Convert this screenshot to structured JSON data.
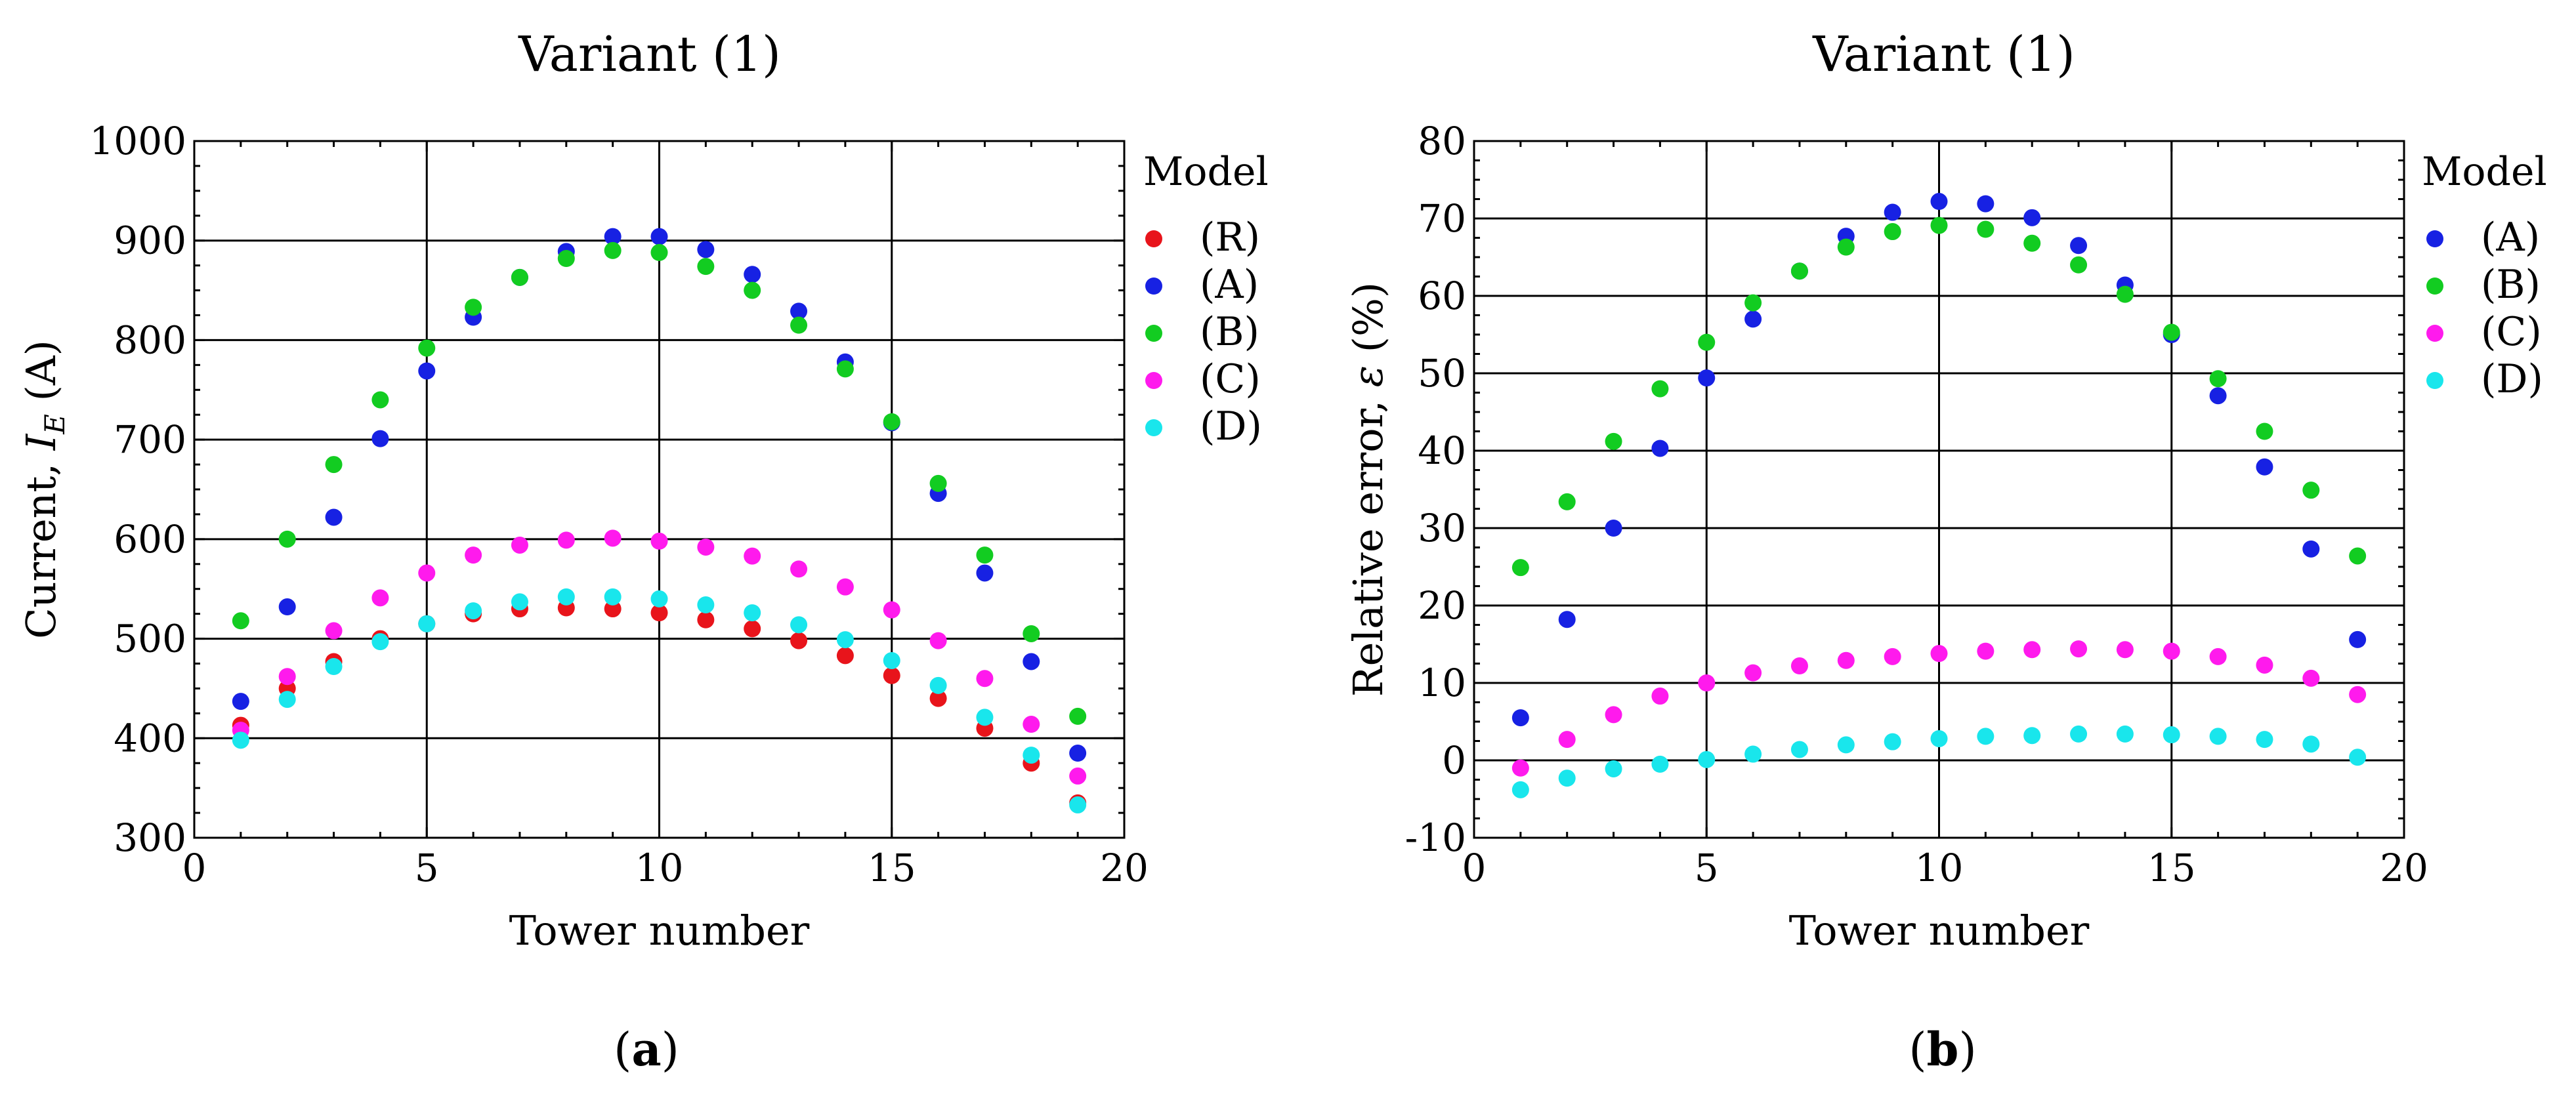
{
  "chart_data": [
    {
      "id": "a",
      "type": "scatter",
      "title": "Variant (1)",
      "xlabel": "Tower number",
      "ylabel": {
        "prefix": "Current, ",
        "var": "I",
        "sub": "E",
        "unit": " (A)"
      },
      "panel_prefix": "(",
      "panel_label": "a",
      "panel_suffix": ")",
      "xlim": [
        0,
        20
      ],
      "ylim": [
        300,
        1000
      ],
      "xticks": [
        0,
        5,
        10,
        15,
        20
      ],
      "yticks": [
        300,
        400,
        500,
        600,
        700,
        800,
        900,
        1000
      ],
      "grid": true,
      "legend_title": "Model",
      "legend_position": "right",
      "x": [
        1,
        2,
        3,
        4,
        5,
        6,
        7,
        8,
        9,
        10,
        11,
        12,
        13,
        14,
        15,
        16,
        17,
        18,
        19
      ],
      "series": [
        {
          "name": "(R)",
          "color": "#e8141b",
          "values": [
            413,
            450,
            477,
            500,
            515,
            525,
            530,
            531,
            530,
            526,
            519,
            510,
            498,
            483,
            463,
            440,
            410,
            375,
            335
          ]
        },
        {
          "name": "(A)",
          "color": "#1721e3",
          "values": [
            437,
            532,
            622,
            701,
            769,
            823,
            863,
            889,
            904,
            904,
            891,
            866,
            829,
            778,
            717,
            646,
            566,
            477,
            385
          ]
        },
        {
          "name": "(B)",
          "color": "#12cc21",
          "values": [
            518,
            600,
            675,
            740,
            792,
            833,
            863,
            882,
            890,
            888,
            874,
            850,
            815,
            771,
            718,
            656,
            584,
            505,
            422
          ]
        },
        {
          "name": "(C)",
          "color": "#ff1aed",
          "values": [
            408,
            462,
            508,
            541,
            566,
            584,
            594,
            599,
            601,
            598,
            592,
            583,
            570,
            552,
            529,
            498,
            460,
            414,
            362
          ]
        },
        {
          "name": "(D)",
          "color": "#19e6ec",
          "values": [
            398,
            439,
            472,
            497,
            515,
            528,
            537,
            542,
            542,
            540,
            534,
            526,
            514,
            499,
            478,
            453,
            421,
            383,
            333
          ]
        }
      ]
    },
    {
      "id": "b",
      "type": "scatter",
      "title": "Variant (1)",
      "xlabel": "Tower number",
      "ylabel": {
        "prefix": "Relative error, ",
        "var": "ε",
        "sub": "",
        "unit": " (%)"
      },
      "panel_prefix": "(",
      "panel_label": "b",
      "panel_suffix": ")",
      "xlim": [
        0,
        20
      ],
      "ylim": [
        -10,
        80
      ],
      "xticks": [
        0,
        5,
        10,
        15,
        20
      ],
      "yticks": [
        -10,
        0,
        10,
        20,
        30,
        40,
        50,
        60,
        70,
        80
      ],
      "grid": true,
      "legend_title": "Model",
      "legend_position": "right",
      "x": [
        1,
        2,
        3,
        4,
        5,
        6,
        7,
        8,
        9,
        10,
        11,
        12,
        13,
        14,
        15,
        16,
        17,
        18,
        19
      ],
      "series": [
        {
          "name": "(A)",
          "color": "#1721e3",
          "values": [
            5.5,
            18.2,
            30.0,
            40.3,
            49.4,
            57.0,
            63.2,
            67.7,
            70.8,
            72.2,
            71.9,
            70.1,
            66.5,
            61.4,
            55.0,
            47.1,
            37.9,
            27.3,
            15.6
          ]
        },
        {
          "name": "(B)",
          "color": "#12cc21",
          "values": [
            24.9,
            33.4,
            41.2,
            48.0,
            54.0,
            59.1,
            63.2,
            66.3,
            68.3,
            69.1,
            68.6,
            66.8,
            64.0,
            60.2,
            55.3,
            49.3,
            42.5,
            34.9,
            26.4
          ]
        },
        {
          "name": "(C)",
          "color": "#ff1aed",
          "values": [
            -1.0,
            2.7,
            5.9,
            8.3,
            10.0,
            11.3,
            12.2,
            12.9,
            13.4,
            13.8,
            14.1,
            14.3,
            14.4,
            14.3,
            14.1,
            13.4,
            12.3,
            10.6,
            8.5
          ]
        },
        {
          "name": "(D)",
          "color": "#19e6ec",
          "values": [
            -3.8,
            -2.3,
            -1.1,
            -0.5,
            0.1,
            0.8,
            1.4,
            2.0,
            2.4,
            2.8,
            3.1,
            3.2,
            3.4,
            3.4,
            3.3,
            3.1,
            2.7,
            2.1,
            0.4
          ]
        }
      ]
    }
  ]
}
